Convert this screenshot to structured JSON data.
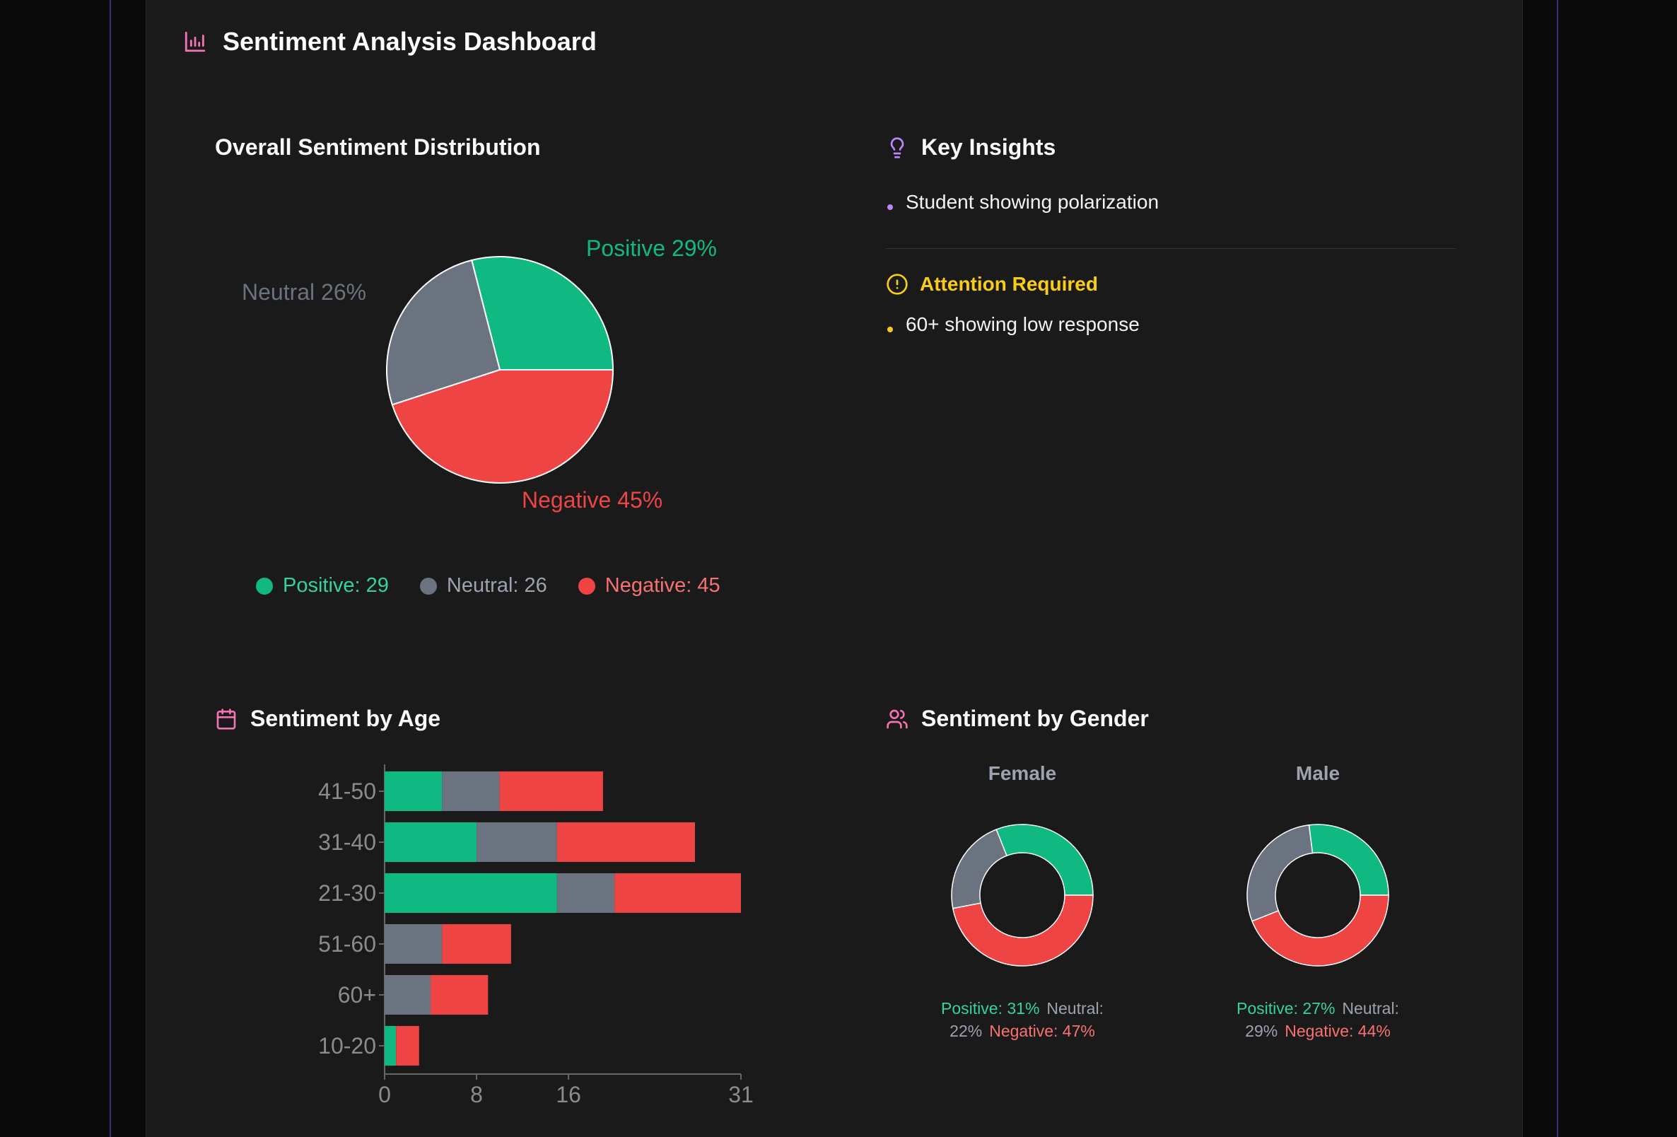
{
  "header": {
    "title": "Sentiment Analysis Dashboard"
  },
  "colors": {
    "positive": "#10b981",
    "neutral": "#6b7280",
    "negative": "#ef4444",
    "accent": "#f472b6",
    "insight": "#c084fc",
    "warning": "#facc15"
  },
  "overall": {
    "title": "Overall Sentiment Distribution",
    "labels": {
      "positive": "Positive 29%",
      "neutral": "Neutral 26%",
      "negative": "Negative 45%"
    },
    "legend": {
      "positive": "Positive: 29",
      "neutral": "Neutral: 26",
      "negative": "Negative: 45"
    }
  },
  "insights": {
    "title": "Key Insights",
    "items": [
      "Student showing polarization"
    ],
    "attention_title": "Attention Required",
    "attention_items": [
      "60+ showing low response"
    ]
  },
  "age": {
    "title": "Sentiment by Age"
  },
  "gender": {
    "title": "Sentiment by Gender",
    "female": {
      "title": "Female",
      "positive": "Positive: 31%",
      "neutral": "Neutral:",
      "neutral_value": "22%",
      "negative": "Negative: 47%"
    },
    "male": {
      "title": "Male",
      "positive": "Positive: 27%",
      "neutral": "Neutral:",
      "neutral_value": "29%",
      "negative": "Negative: 44%"
    }
  },
  "chart_data": [
    {
      "type": "pie",
      "title": "Overall Sentiment Distribution",
      "categories": [
        "Positive",
        "Neutral",
        "Negative"
      ],
      "values": [
        29,
        26,
        45
      ]
    },
    {
      "type": "bar",
      "orientation": "horizontal",
      "stacked": true,
      "title": "Sentiment by Age",
      "categories": [
        "41-50",
        "31-40",
        "21-30",
        "51-60",
        "60+",
        "10-20"
      ],
      "series": [
        {
          "name": "Positive",
          "values": [
            5,
            8,
            15,
            0,
            0,
            1
          ]
        },
        {
          "name": "Neutral",
          "values": [
            5,
            7,
            5,
            5,
            4,
            0
          ]
        },
        {
          "name": "Negative",
          "values": [
            9,
            12,
            11,
            6,
            5,
            2
          ]
        }
      ],
      "xlim": [
        0,
        31
      ],
      "xticks": [
        0,
        8,
        16,
        31
      ]
    },
    {
      "type": "pie",
      "variant": "donut",
      "title": "Female",
      "categories": [
        "Positive",
        "Neutral",
        "Negative"
      ],
      "values": [
        31,
        22,
        47
      ]
    },
    {
      "type": "pie",
      "variant": "donut",
      "title": "Male",
      "categories": [
        "Positive",
        "Neutral",
        "Negative"
      ],
      "values": [
        27,
        29,
        44
      ]
    }
  ]
}
